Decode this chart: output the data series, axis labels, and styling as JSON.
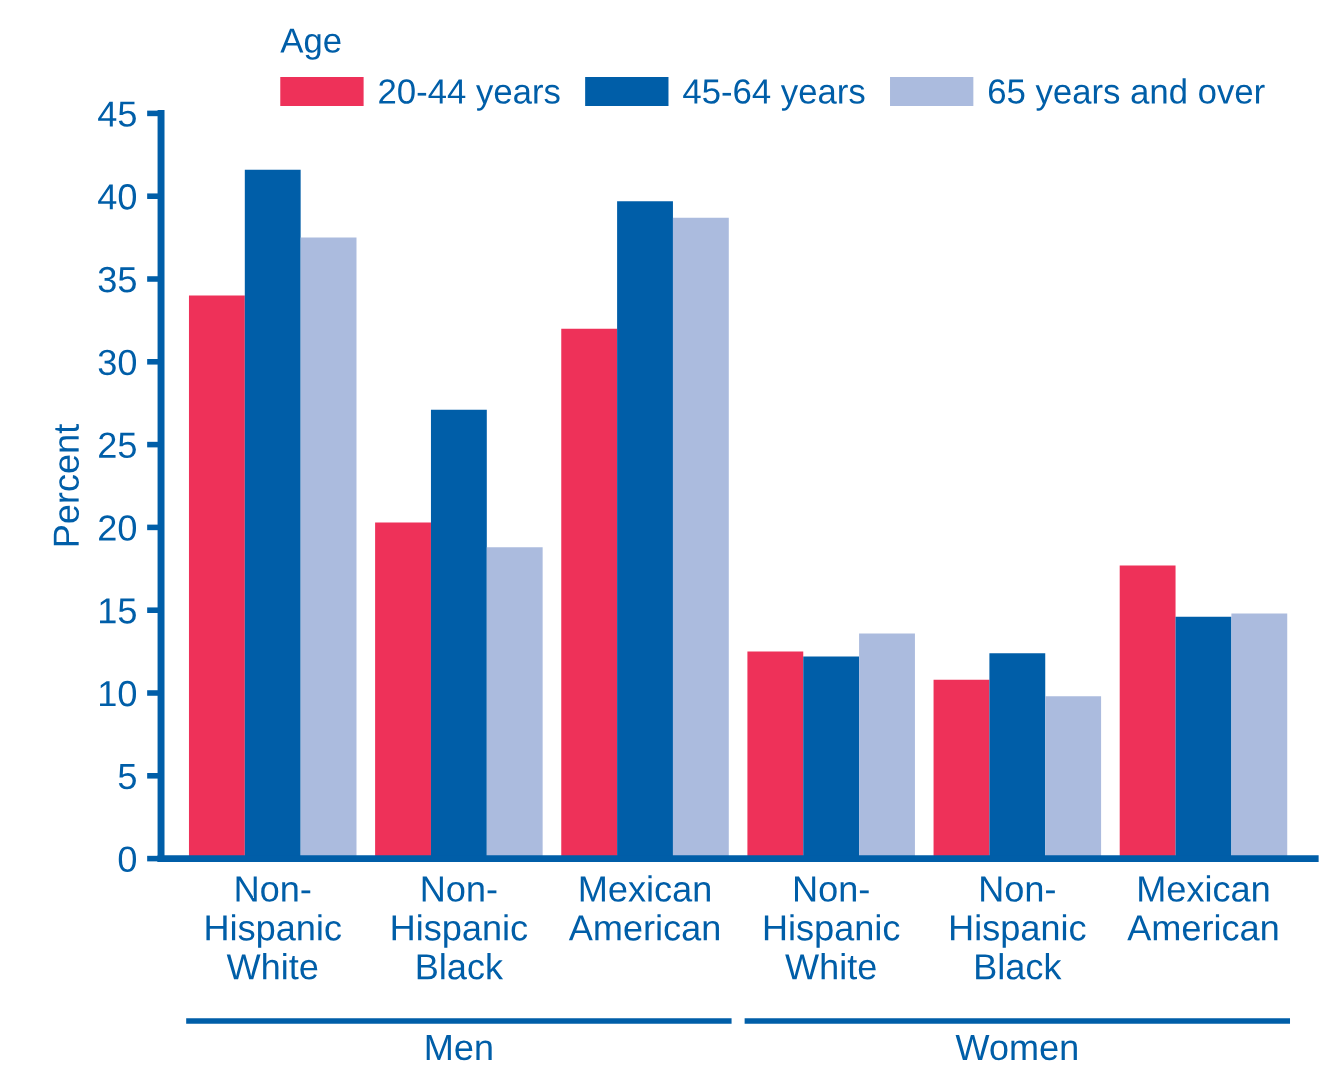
{
  "chart_data": {
    "type": "bar",
    "ylabel": "Percent",
    "legend_title": "Age",
    "categories": [
      "Non-\nHispanic\nWhite",
      "Non-\nHispanic\nBlack",
      "Mexican\nAmerican",
      "Non-\nHispanic\nWhite",
      "Non-\nHispanic\nBlack",
      "Mexican\nAmerican"
    ],
    "series": [
      {
        "name": "20-44 years",
        "color": "#ee3159",
        "values": [
          34.0,
          20.3,
          32.0,
          12.5,
          10.8,
          17.7
        ]
      },
      {
        "name": "45-64 years",
        "color": "#005ea8",
        "values": [
          41.6,
          27.1,
          39.7,
          12.2,
          12.4,
          14.6
        ]
      },
      {
        "name": "65 years and over",
        "color": "#abbbde",
        "values": [
          37.5,
          18.8,
          38.7,
          13.6,
          9.8,
          14.8
        ]
      }
    ],
    "annotations": [
      "Men",
      "Women"
    ],
    "ylim": [
      0,
      45
    ],
    "yticks": [
      0,
      5,
      10,
      15,
      20,
      25,
      30,
      35,
      40,
      45
    ],
    "grid": false,
    "legend": "top"
  }
}
